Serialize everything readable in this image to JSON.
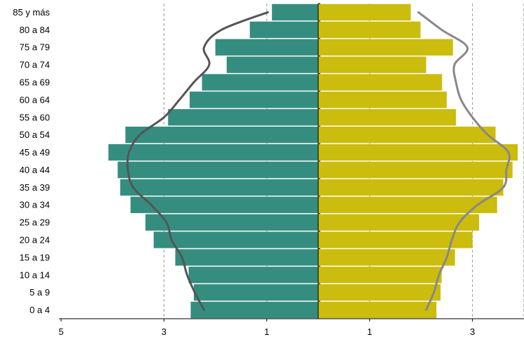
{
  "chart_data": {
    "type": "bar",
    "orientation": "horizontal",
    "subtype": "population-pyramid",
    "title": "",
    "xlabel": "",
    "ylabel": "",
    "categories": [
      "0 a 4",
      "5 a 9",
      "10 a 14",
      "15 a 19",
      "20 a 24",
      "25 a 29",
      "30 a 34",
      "35 a 39",
      "40 a 44",
      "45 a 49",
      "50 a 54",
      "55 a 60",
      "60 a 64",
      "65 a 69",
      "70 a 74",
      "75 a 79",
      "80 a 84",
      "85 y más"
    ],
    "xlim": [
      -5,
      4
    ],
    "xticks": [
      -5,
      -3,
      -1,
      1,
      3
    ],
    "xtick_labels": [
      "5",
      "3",
      "1",
      "1",
      "3"
    ],
    "grid": "vertical dashed at tick positions",
    "series": [
      {
        "side": "left",
        "type": "bar",
        "color": "#358d80",
        "values": [
          -2.48,
          -2.42,
          -2.52,
          -2.78,
          -3.2,
          -3.36,
          -3.65,
          -3.85,
          -3.9,
          -4.08,
          -3.75,
          -2.92,
          -2.5,
          -2.26,
          -1.78,
          -2.0,
          -1.33,
          -0.9
        ]
      },
      {
        "side": "right",
        "type": "bar",
        "color": "#cbbc0d",
        "values": [
          2.3,
          2.38,
          2.4,
          2.66,
          3.0,
          3.13,
          3.48,
          3.6,
          3.78,
          3.88,
          3.45,
          2.68,
          2.5,
          2.41,
          2.1,
          2.62,
          1.99,
          1.8
        ]
      },
      {
        "side": "left",
        "type": "line",
        "color": "#555555",
        "values": [
          -2.22,
          -2.4,
          -2.55,
          -2.65,
          -2.85,
          -2.95,
          -3.25,
          -3.6,
          -3.7,
          -3.68,
          -3.47,
          -3.0,
          -2.7,
          -2.42,
          -2.12,
          -2.22,
          -1.88,
          -0.98
        ]
      },
      {
        "side": "right",
        "type": "line",
        "color": "#888888",
        "values": [
          2.1,
          2.25,
          2.35,
          2.5,
          2.6,
          2.75,
          3.1,
          3.6,
          3.66,
          3.7,
          3.3,
          3.0,
          2.78,
          2.68,
          2.65,
          2.9,
          2.4,
          1.95
        ]
      }
    ]
  }
}
